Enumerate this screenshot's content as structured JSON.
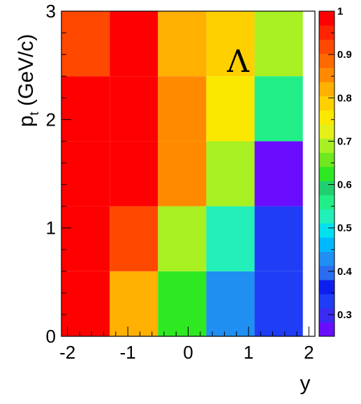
{
  "chart_data": {
    "type": "heatmap",
    "title": "",
    "particle_label": "Λ",
    "xlabel": "y",
    "ylabel": {
      "main": "p",
      "subscript": "t",
      "suffix": " (GeV/c)"
    },
    "xlim": [
      -2.1,
      2.1
    ],
    "ylim": [
      0,
      3
    ],
    "x_ticks": [
      -2,
      -1,
      0,
      1,
      2
    ],
    "x_tick_labels": [
      "-2",
      "-1",
      "0",
      "1",
      "2"
    ],
    "y_ticks": [
      0,
      1,
      2,
      3
    ],
    "y_tick_labels": [
      "0",
      "1",
      "2",
      "3"
    ],
    "x_bin_edges": [
      -2.1,
      -1.3,
      -0.5,
      0.3,
      1.1,
      1.9
    ],
    "y_bin_edges": [
      0,
      0.6,
      1.2,
      1.8,
      2.4,
      3.0
    ],
    "values": [
      [
        1.0,
        0.83,
        0.62,
        0.43,
        0.33
      ],
      [
        1.0,
        0.92,
        0.68,
        0.52,
        0.32
      ],
      [
        1.0,
        1.0,
        0.84,
        0.68,
        0.26
      ],
      [
        1.0,
        1.0,
        0.84,
        0.75,
        0.57
      ],
      [
        0.92,
        1.0,
        0.81,
        0.79,
        0.68
      ]
    ],
    "colorbar": {
      "range": [
        0.25,
        1.0
      ],
      "ticks": [
        0.3,
        0.4,
        0.5,
        0.6,
        0.7,
        0.8,
        0.9,
        1.0
      ],
      "tick_labels": [
        "0.3",
        "0.4",
        "0.5",
        "0.6",
        "0.7",
        "0.8",
        "0.9",
        "1"
      ],
      "palette": [
        "#6a0dff",
        "#3a2bf2",
        "#1f3df5",
        "#0d1fee",
        "#2a6df0",
        "#1f8ff2",
        "#00b8ff",
        "#00e0ee",
        "#22f0b8",
        "#22ee88",
        "#20d070",
        "#2ee822",
        "#70e820",
        "#a8f022",
        "#e5f018",
        "#fae800",
        "#ffd000",
        "#ffb000",
        "#ff8a00",
        "#ff6a00",
        "#ff4800",
        "#ff2400",
        "#ff0000"
      ]
    },
    "grid": false
  }
}
